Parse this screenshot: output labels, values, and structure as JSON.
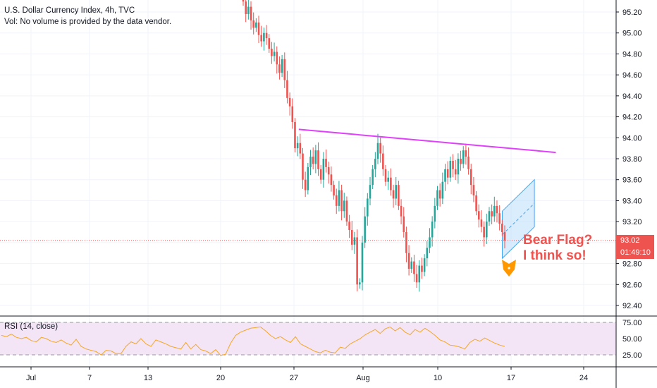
{
  "header": {
    "title": "U.S. Dollar Currency Index, 4h, TVC",
    "volume_note": "Vol: No volume is provided by the data vendor."
  },
  "price_badge": "93.02",
  "countdown_badge": "01:49:10",
  "annotation": {
    "line1": "Bear Flag?",
    "line2": "I think so!"
  },
  "rsi": {
    "label": "RSI (14, close)",
    "ticks": [
      "75.00",
      "50.00",
      "25.00"
    ],
    "values": [
      75,
      50,
      25
    ]
  },
  "colors": {
    "up": "#26a69a",
    "down": "#ef5350",
    "trendline": "#e040fb",
    "flag_fill": "#bbdefb",
    "flag_stroke": "#42a5f5",
    "rsi_band": "#f3e5f5",
    "rsi_line": "#f5a623",
    "price_line": "#ef5350",
    "icon": "#ff9800"
  },
  "chart_data": {
    "type": "candlestick",
    "price_axis_ticks": [
      "95.20",
      "95.00",
      "94.80",
      "94.60",
      "94.40",
      "94.20",
      "94.00",
      "93.80",
      "93.60",
      "93.40",
      "93.20",
      "93.00",
      "92.80",
      "92.60",
      "92.40"
    ],
    "price_axis_values": [
      95.2,
      95.0,
      94.8,
      94.6,
      94.4,
      94.2,
      94.0,
      93.8,
      93.6,
      93.4,
      93.2,
      93.0,
      92.8,
      92.6,
      92.4
    ],
    "time_axis_ticks": [
      "Jul",
      "7",
      "13",
      "20",
      "27",
      "Aug",
      "10",
      "17",
      "24"
    ],
    "ylim": [
      92.32,
      95.28
    ],
    "last_price": 93.02,
    "closes": [
      95.3,
      95.18,
      95.25,
      95.12,
      95.05,
      95.1,
      94.98,
      94.92,
      95.0,
      94.95,
      94.85,
      94.78,
      94.82,
      94.7,
      94.62,
      94.75,
      94.55,
      94.38,
      94.3,
      94.15,
      93.9,
      93.95,
      93.85,
      93.6,
      93.5,
      93.72,
      93.82,
      93.75,
      93.88,
      93.7,
      93.6,
      93.8,
      93.72,
      93.65,
      93.55,
      93.45,
      93.35,
      93.5,
      93.3,
      93.4,
      93.2,
      93.12,
      92.98,
      93.05,
      92.6,
      92.62,
      93.0,
      93.25,
      93.42,
      93.55,
      93.7,
      93.8,
      93.95,
      93.85,
      93.7,
      93.58,
      93.62,
      93.5,
      93.42,
      93.55,
      93.35,
      93.25,
      93.1,
      92.9,
      92.75,
      92.82,
      92.7,
      92.62,
      92.78,
      92.72,
      92.85,
      92.95,
      93.05,
      93.2,
      93.35,
      93.5,
      93.42,
      93.58,
      93.7,
      93.62,
      93.78,
      93.7,
      93.65,
      93.8,
      93.75,
      93.88,
      93.82,
      93.7,
      93.55,
      93.45,
      93.3,
      93.22,
      93.15,
      93.05,
      93.2,
      93.3,
      93.25,
      93.35,
      93.28,
      93.18,
      93.1,
      93.02
    ],
    "time_span": [
      "Jul",
      "17"
    ],
    "rsi_values": [
      55,
      53,
      57,
      52,
      50,
      52,
      47,
      45,
      52,
      50,
      46,
      44,
      48,
      43,
      40,
      49,
      38,
      34,
      32,
      30,
      25,
      32,
      31,
      27,
      27,
      38,
      45,
      42,
      50,
      42,
      38,
      48,
      45,
      42,
      38,
      36,
      34,
      44,
      34,
      41,
      33,
      31,
      27,
      33,
      24,
      26,
      43,
      55,
      60,
      63,
      66,
      67,
      68,
      62,
      55,
      50,
      53,
      48,
      44,
      53,
      42,
      38,
      34,
      30,
      28,
      32,
      29,
      28,
      37,
      35,
      42,
      46,
      50,
      56,
      60,
      64,
      58,
      65,
      68,
      62,
      67,
      60,
      56,
      64,
      60,
      66,
      61,
      55,
      48,
      45,
      40,
      39,
      37,
      34,
      44,
      49,
      46,
      51,
      47,
      43,
      40,
      38
    ],
    "trendline": {
      "from": [
        "Jul 26",
        94.08
      ],
      "to": [
        "Aug 19",
        93.86
      ]
    },
    "flag_channel": {
      "from_date": "Aug 14",
      "to_date": "Aug 17",
      "from_range": [
        92.85,
        93.3
      ],
      "to_range": [
        93.15,
        93.6
      ]
    }
  }
}
